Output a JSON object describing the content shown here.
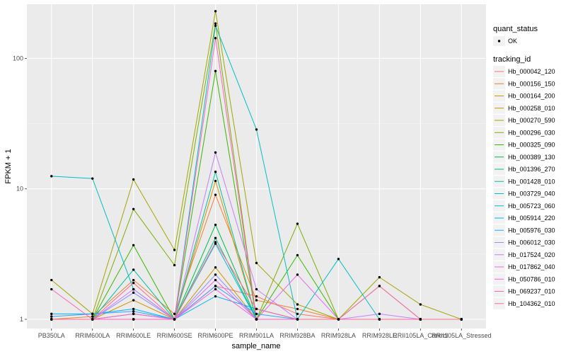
{
  "chart_data": {
    "type": "line",
    "xlabel": "sample_name",
    "ylabel": "FPKM + 1",
    "y_scale": "log10",
    "ylim": [
      0.85,
      260
    ],
    "y_ticks": [
      1,
      10,
      100
    ],
    "y_tick_labels": [
      "1",
      "10",
      "100"
    ],
    "grid": true,
    "background": "#ebebeb",
    "legend_placement": "right",
    "categories": [
      "PB350LA",
      "RRIM600LA",
      "RRIM600LE",
      "RRIM600SE",
      "RRIM600PE",
      "RRIM901LA",
      "RRIM928BA",
      "RRIM928LA",
      "RRIM928LE",
      "RRII105LA_Control",
      "RRII105LA_Stressed"
    ],
    "marker_legend": {
      "title": "quant_status",
      "entries": [
        "OK"
      ]
    },
    "series_legend_title": "tracking_id",
    "series": [
      {
        "name": "Hb_000042_120",
        "color": "#F8766D",
        "values": [
          1.0,
          1.0,
          1.1,
          1.0,
          1.8,
          1.5,
          1.1,
          1.0,
          1.0,
          1.0,
          1.0
        ]
      },
      {
        "name": "Hb_000156_150",
        "color": "#EA8331",
        "values": [
          1.0,
          1.05,
          2.0,
          1.1,
          9.0,
          1.4,
          1.2,
          1.0,
          1.0,
          1.0,
          1.0
        ]
      },
      {
        "name": "Hb_000164_200",
        "color": "#D89000",
        "values": [
          1.0,
          1.0,
          1.4,
          1.0,
          11.5,
          1.0,
          1.0,
          1.0,
          1.0,
          1.0,
          1.0
        ]
      },
      {
        "name": "Hb_000258_010",
        "color": "#C09B00",
        "values": [
          1.0,
          1.0,
          1.1,
          1.0,
          2.5,
          1.0,
          1.0,
          1.0,
          1.0,
          1.0,
          1.0
        ]
      },
      {
        "name": "Hb_000270_590",
        "color": "#A3A500",
        "values": [
          2.0,
          1.1,
          11.8,
          3.4,
          230,
          2.7,
          1.3,
          1.0,
          2.1,
          1.3,
          1.0
        ]
      },
      {
        "name": "Hb_000296_030",
        "color": "#7CAE00",
        "values": [
          1.0,
          1.0,
          7.0,
          2.6,
          185,
          1.0,
          5.4,
          1.0,
          1.8,
          1.0,
          1.0
        ]
      },
      {
        "name": "Hb_000325_090",
        "color": "#39B600",
        "values": [
          1.0,
          1.0,
          3.7,
          1.0,
          80,
          1.0,
          3.1,
          1.0,
          1.0,
          1.0,
          1.0
        ]
      },
      {
        "name": "Hb_000389_130",
        "color": "#00BB4E",
        "values": [
          1.0,
          1.0,
          1.0,
          1.0,
          5.3,
          1.0,
          1.0,
          1.0,
          1.0,
          1.0,
          1.0
        ]
      },
      {
        "name": "Hb_001396_270",
        "color": "#00BF7D",
        "values": [
          1.0,
          1.0,
          1.0,
          1.0,
          4.2,
          1.0,
          1.0,
          1.0,
          1.0,
          1.0,
          1.0
        ]
      },
      {
        "name": "Hb_001428_010",
        "color": "#00C1A3",
        "values": [
          1.0,
          1.0,
          2.4,
          1.0,
          13.5,
          1.0,
          1.0,
          1.0,
          1.0,
          1.0,
          1.0
        ]
      },
      {
        "name": "Hb_003729_040",
        "color": "#00BFC4",
        "values": [
          12.5,
          12.0,
          1.7,
          1.0,
          178,
          28.5,
          1.0,
          2.9,
          1.0,
          1.0,
          1.0
        ]
      },
      {
        "name": "Hb_005723_060",
        "color": "#00BAE0",
        "values": [
          1.0,
          1.0,
          1.0,
          1.0,
          3.8,
          1.0,
          1.0,
          1.0,
          1.0,
          1.0,
          1.0
        ]
      },
      {
        "name": "Hb_005914_220",
        "color": "#00B0F6",
        "values": [
          1.1,
          1.1,
          1.2,
          1.0,
          1.5,
          1.2,
          1.0,
          1.0,
          1.0,
          1.0,
          1.0
        ]
      },
      {
        "name": "Hb_005976_030",
        "color": "#35A2FF",
        "values": [
          1.05,
          1.1,
          1.15,
          1.0,
          1.8,
          1.1,
          1.0,
          1.0,
          1.0,
          1.0,
          1.0
        ]
      },
      {
        "name": "Hb_006012_030",
        "color": "#9590FF",
        "values": [
          1.0,
          1.0,
          1.6,
          1.0,
          2.2,
          1.0,
          1.0,
          1.0,
          1.0,
          1.0,
          1.0
        ]
      },
      {
        "name": "Hb_017524_020",
        "color": "#C77CFF",
        "values": [
          1.0,
          1.0,
          1.7,
          1.0,
          19.0,
          1.7,
          1.0,
          1.0,
          1.1,
          1.0,
          1.0
        ]
      },
      {
        "name": "Hb_017862_040",
        "color": "#E76BF3",
        "values": [
          1.0,
          1.0,
          1.1,
          1.0,
          2.0,
          1.0,
          2.2,
          1.0,
          1.0,
          1.0,
          1.0
        ]
      },
      {
        "name": "Hb_050786_010",
        "color": "#FA62DB",
        "values": [
          1.0,
          1.0,
          1.0,
          1.0,
          1.7,
          1.0,
          1.0,
          1.0,
          1.0,
          1.0,
          1.0
        ]
      },
      {
        "name": "Hb_069237_010",
        "color": "#FF62BC",
        "values": [
          1.7,
          1.0,
          1.0,
          1.0,
          143,
          1.0,
          1.0,
          1.0,
          1.8,
          1.0,
          1.0
        ]
      },
      {
        "name": "Hb_104362_010",
        "color": "#FF6C91",
        "values": [
          1.0,
          1.0,
          1.9,
          1.0,
          3.9,
          1.2,
          1.0,
          1.0,
          1.0,
          1.0,
          1.0
        ]
      }
    ]
  }
}
